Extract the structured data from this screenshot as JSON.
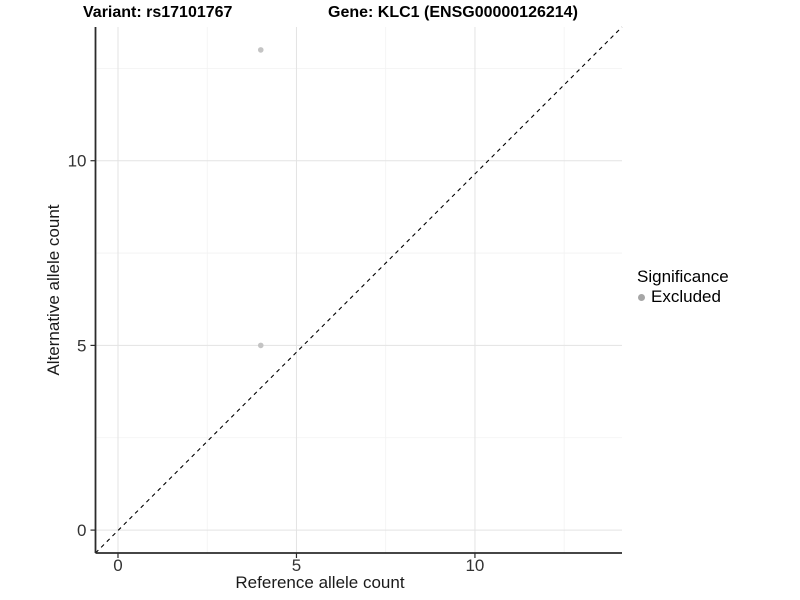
{
  "header": {
    "variant_title": "Variant: rs17101767",
    "gene_title": "Gene: KLC1 (ENSG00000126214)"
  },
  "chart_data": {
    "type": "scatter",
    "title": "",
    "xlabel": "Reference allele count",
    "ylabel": "Alternative allele count",
    "x_ticks": [
      0,
      5,
      10
    ],
    "y_ticks": [
      0,
      5,
      10
    ],
    "x_minor_ticks": [
      2.5,
      7.5,
      12.5
    ],
    "y_minor_ticks": [
      2.5,
      7.5,
      12.5
    ],
    "xlim": [
      -0.63,
      14.12
    ],
    "ylim": [
      -0.62,
      13.62
    ],
    "grid": true,
    "legend_position": "right",
    "series": [
      {
        "name": "Excluded",
        "points": [
          {
            "x": 4,
            "y": 13
          },
          {
            "x": 4,
            "y": 5
          }
        ],
        "color": "#C4C4C4"
      }
    ],
    "reference_line": {
      "type": "identity",
      "style": "dashed",
      "color": "#000000"
    }
  },
  "legend": {
    "title": "Significance",
    "items": [
      {
        "label": "Excluded",
        "marker": "circle",
        "color": "#A6A6A6"
      }
    ]
  },
  "colors": {
    "background": "#FFFFFF",
    "axis_line": "#2b2b2b",
    "tick_text": "#333333",
    "grid_major": "#E3E3E3",
    "grid_minor": "#F2F2F2",
    "title_text": "#000000"
  }
}
